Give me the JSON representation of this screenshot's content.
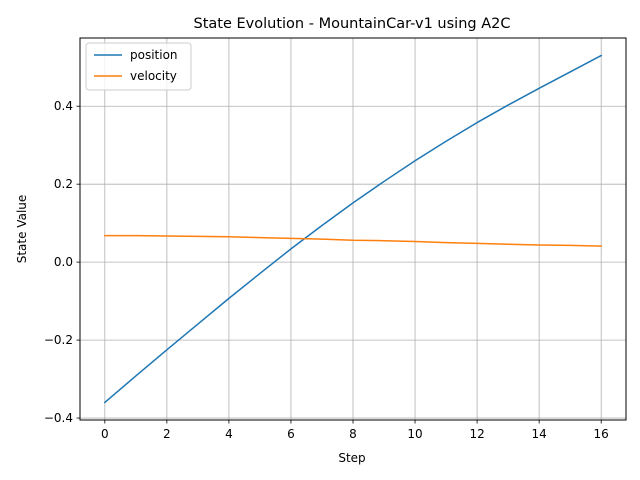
{
  "chart_data": {
    "type": "line",
    "title": "State Evolution - MountainCar-v1 using A2C",
    "xlabel": "Step",
    "ylabel": "State Value",
    "xlim": [
      -0.8,
      16.8
    ],
    "ylim": [
      -0.405,
      0.575
    ],
    "xticks": [
      0,
      2,
      4,
      6,
      8,
      10,
      12,
      14,
      16
    ],
    "xtick_labels": [
      "0",
      "2",
      "4",
      "6",
      "8",
      "10",
      "12",
      "14",
      "16"
    ],
    "yticks": [
      -0.4,
      -0.2,
      0.0,
      0.2,
      0.4
    ],
    "ytick_labels": [
      "−0.4",
      "−0.2",
      "0.0",
      "0.2",
      "0.4"
    ],
    "grid": true,
    "legend_position": "upper-left",
    "x": [
      0,
      1,
      2,
      3,
      4,
      5,
      6,
      7,
      8,
      9,
      10,
      11,
      12,
      13,
      14,
      15,
      16
    ],
    "series": [
      {
        "name": "position",
        "color": "#1f77b4",
        "values": [
          -0.36,
          -0.292,
          -0.225,
          -0.159,
          -0.093,
          -0.029,
          0.034,
          0.094,
          0.152,
          0.207,
          0.26,
          0.31,
          0.358,
          0.403,
          0.446,
          0.488,
          0.53
        ]
      },
      {
        "name": "velocity",
        "color": "#ff7f0e",
        "values": [
          0.068,
          0.068,
          0.067,
          0.066,
          0.065,
          0.063,
          0.061,
          0.059,
          0.056,
          0.055,
          0.053,
          0.05,
          0.048,
          0.046,
          0.044,
          0.043,
          0.041
        ]
      }
    ]
  }
}
